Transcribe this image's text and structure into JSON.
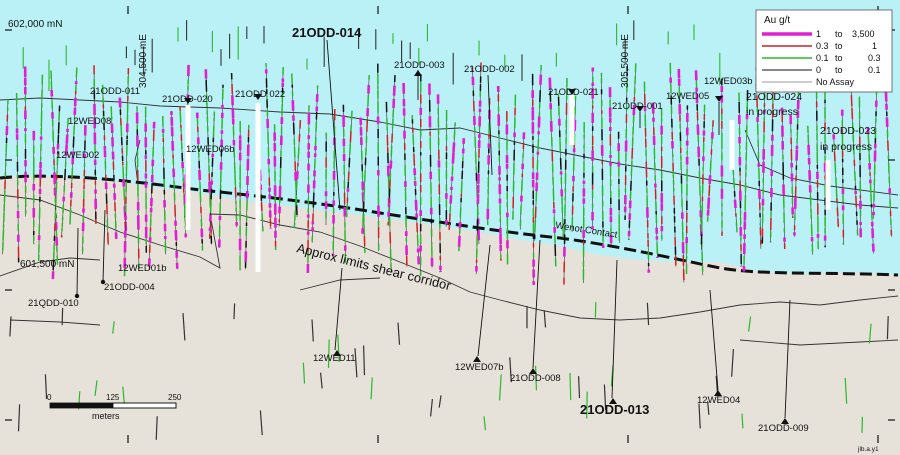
{
  "map": {
    "grid": {
      "northing_top": "602,000 mN",
      "northing_mid": "601,500 mN",
      "easting_left": "304,500 mE",
      "easting_right": "305,500 mE"
    },
    "drillholes": [
      {
        "id": "21ODD-014",
        "emphasis": true
      },
      {
        "id": "21ODD-003"
      },
      {
        "id": "21ODD-002"
      },
      {
        "id": "21ODD-021"
      },
      {
        "id": "21ODD-001"
      },
      {
        "id": "12WED05"
      },
      {
        "id": "12WED03b"
      },
      {
        "id": "21ODD-024"
      },
      {
        "id": "21ODD-023"
      },
      {
        "id": "21ODD-011"
      },
      {
        "id": "21ODD-020"
      },
      {
        "id": "21ODD 022"
      },
      {
        "id": "12WED08"
      },
      {
        "id": "12WED02"
      },
      {
        "id": "12WED06b"
      },
      {
        "id": "12WED01b"
      },
      {
        "id": "21ODD-004"
      },
      {
        "id": "21QDD-010"
      },
      {
        "id": "12WED11"
      },
      {
        "id": "12WED07b"
      },
      {
        "id": "21ODD-008"
      },
      {
        "id": "21ODD-013",
        "emphasis": true
      },
      {
        "id": "12WED04"
      },
      {
        "id": "21ODD-009"
      }
    ],
    "status_notes": {
      "odd024": "in progress",
      "odd023": "in progress"
    },
    "annotations": {
      "contact": "Wenot Contact",
      "shear": "Approx limits shear corridor"
    },
    "scale_bar": {
      "ticks": [
        "0",
        "125",
        "250"
      ],
      "unit": "meters"
    },
    "legend": {
      "title": "Au g/t",
      "items": [
        {
          "from": "1",
          "to_word": "to",
          "to": "3,500",
          "color": "#e020d0"
        },
        {
          "from": "0.3",
          "to_word": "to",
          "to": "1",
          "color": "#d02020"
        },
        {
          "from": "0.1",
          "to_word": "to",
          "to": "0.3",
          "color": "#2cb82c"
        },
        {
          "from": "0",
          "to_word": "to",
          "to": "0.1",
          "color": "#111111"
        },
        {
          "label": "No Assay",
          "color": "#999999"
        }
      ]
    },
    "footer_id": "jlb.a.y1",
    "colors": {
      "pit_water": "#b9f1f6",
      "ground": "#e6e2d9",
      "high_grade": "#e020d0",
      "mid_grade": "#d02020",
      "low_grade": "#2cb82c",
      "trace": "#111111"
    }
  }
}
